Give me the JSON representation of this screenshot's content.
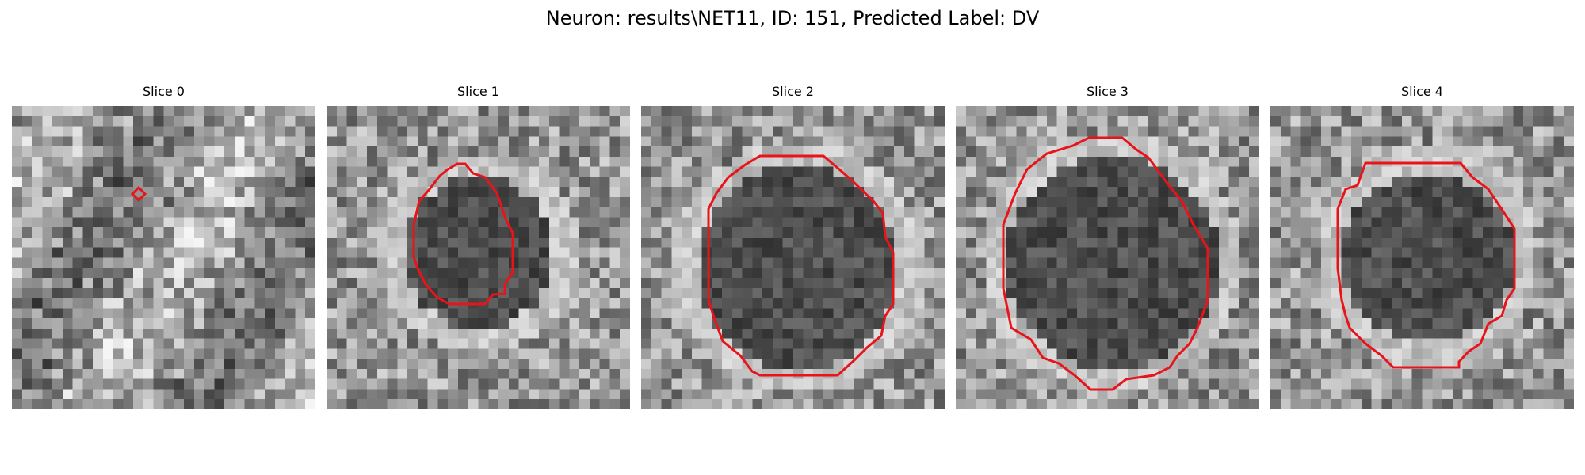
{
  "figure": {
    "title": "Neuron: results\\NET11, ID: 151, Predicted Label: DV"
  },
  "panels": [
    {
      "title": "Slice 0"
    },
    {
      "title": "Slice 1"
    },
    {
      "title": "Slice 2"
    },
    {
      "title": "Slice 3"
    },
    {
      "title": "Slice 4"
    }
  ],
  "contour_color": "#e8141a",
  "image_colormap": "grayscale"
}
